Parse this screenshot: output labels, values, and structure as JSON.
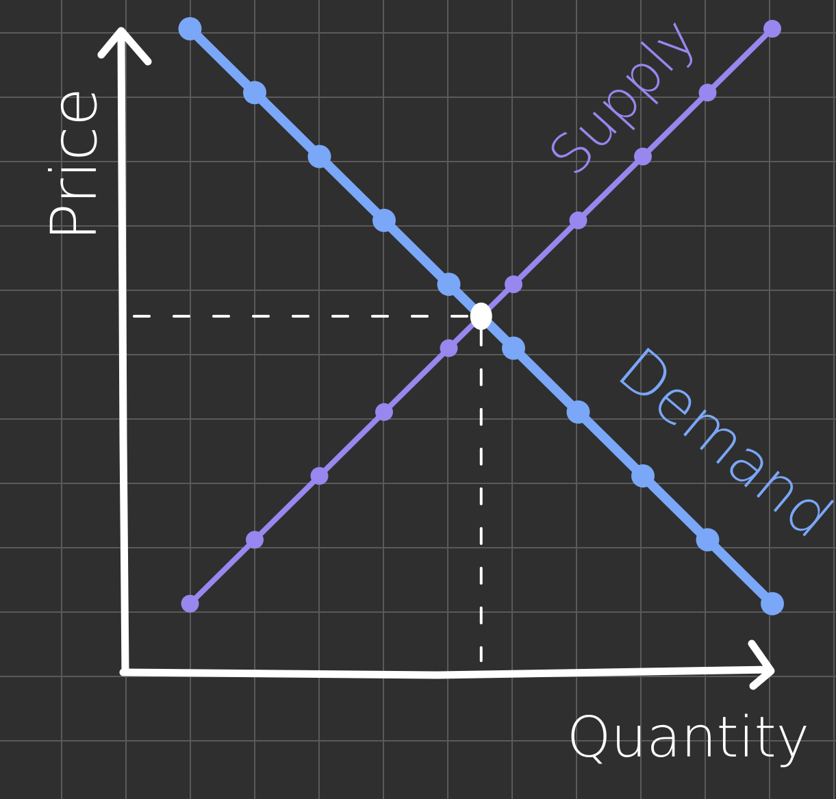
{
  "chart_data": {
    "type": "line",
    "title": "",
    "xlabel": "Quantity",
    "ylabel": "Price",
    "grid": true,
    "xlim": [
      0,
      10
    ],
    "ylim": [
      0,
      10
    ],
    "series": [
      {
        "name": "Demand",
        "color": "#7aa7f7",
        "x": [
          1,
          2,
          3,
          4,
          5,
          6,
          7,
          8,
          9,
          10
        ],
        "y": [
          10,
          9,
          8,
          7,
          6,
          5,
          4,
          3,
          2,
          1
        ]
      },
      {
        "name": "Supply",
        "color": "#9787ee",
        "x": [
          1,
          2,
          3,
          4,
          5,
          6,
          7,
          8,
          9,
          10
        ],
        "y": [
          1,
          2,
          3,
          4,
          5,
          6,
          7,
          8,
          9,
          10
        ]
      }
    ],
    "equilibrium": {
      "x": 5.5,
      "y": 5.5,
      "color": "#ffffff"
    },
    "colors": {
      "background": "#2f2f2f",
      "grid": "#5a5a5a",
      "axis": "#ffffff",
      "label_text": "#ffffff",
      "guide_lines": "#ffffff"
    }
  }
}
